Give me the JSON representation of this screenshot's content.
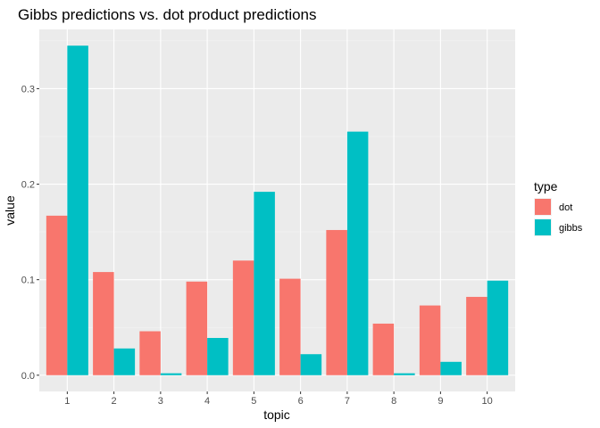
{
  "chart_data": {
    "type": "bar",
    "title": "Gibbs predictions vs. dot product predictions",
    "xlabel": "topic",
    "ylabel": "value",
    "categories": [
      "1",
      "2",
      "3",
      "4",
      "5",
      "6",
      "7",
      "8",
      "9",
      "10"
    ],
    "series": [
      {
        "name": "dot",
        "color": "#F8766D",
        "values": [
          0.167,
          0.108,
          0.046,
          0.098,
          0.12,
          0.101,
          0.152,
          0.054,
          0.073,
          0.082
        ]
      },
      {
        "name": "gibbs",
        "color": "#00BFC4",
        "values": [
          0.345,
          0.028,
          0.002,
          0.039,
          0.192,
          0.022,
          0.255,
          0.002,
          0.014,
          0.099
        ]
      }
    ],
    "ylim": [
      -0.017,
      0.362
    ],
    "yticks": [
      0.0,
      0.1,
      0.2,
      0.3
    ],
    "ytick_labels": [
      "0.0",
      "0.1",
      "0.2",
      "0.3"
    ],
    "grid": true,
    "legend": {
      "title": "type",
      "position": "right"
    }
  }
}
